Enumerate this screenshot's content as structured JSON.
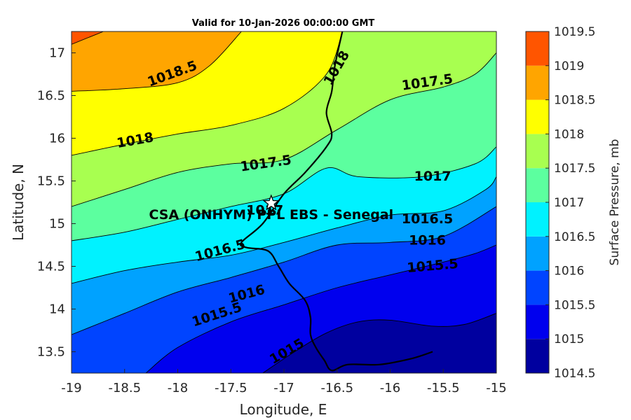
{
  "chart_data": {
    "type": "contour",
    "title": "Valid for 10-Jan-2026 00:00:00 GMT",
    "xlabel": "Longitude, E",
    "ylabel": "Latitude, N",
    "xlim": [
      -19,
      -15
    ],
    "ylim": [
      13.25,
      17.25
    ],
    "x_ticks": [
      -19,
      -18.5,
      -18,
      -17.5,
      -17,
      -16.5,
      -16,
      -15.5,
      -15
    ],
    "x_tick_labels": [
      "-19",
      "-18.5",
      "-18",
      "-17.5",
      "-17",
      "-16.5",
      "-16",
      "-15.5",
      "-15"
    ],
    "y_ticks": [
      13.5,
      14,
      14.5,
      15,
      15.5,
      16,
      16.5,
      17
    ],
    "y_tick_labels": [
      "13.5",
      "14",
      "14.5",
      "15",
      "15.5",
      "16",
      "16.5",
      "17"
    ],
    "colorbar": {
      "label": "Surface Pressure, mb",
      "levels": [
        14.5,
        15,
        15.5,
        16,
        16.5,
        17,
        17.5,
        18,
        18.5,
        19,
        19.5
      ],
      "level_labels": [
        "1014.5",
        "1015",
        "1015.5",
        "1016",
        "1016.5",
        "1017",
        "1017.5",
        "1018",
        "1018.5",
        "1019",
        "1019.5"
      ],
      "colors": [
        "#00009f",
        "#0000ee",
        "#0044ff",
        "#00a2ff",
        "#00f2ff",
        "#5cff9f",
        "#a8ff50",
        "#ffff00",
        "#ffa500",
        "#ff5500",
        "#ff0000"
      ]
    },
    "contours": [
      {
        "level": "1015",
        "points": [
          [
            -17.2,
            13.25
          ],
          [
            -16.9,
            13.5
          ],
          [
            -16.6,
            13.72
          ],
          [
            -16.3,
            13.85
          ],
          [
            -16.0,
            13.87
          ],
          [
            -15.6,
            13.8
          ],
          [
            -15.3,
            13.82
          ],
          [
            -15,
            13.95
          ]
        ]
      },
      {
        "level": "1015.5",
        "points": [
          [
            -18.3,
            13.25
          ],
          [
            -18.0,
            13.55
          ],
          [
            -17.5,
            13.85
          ],
          [
            -17.0,
            14.05
          ],
          [
            -16.5,
            14.25
          ],
          [
            -16.0,
            14.4
          ],
          [
            -15.5,
            14.55
          ],
          [
            -15.2,
            14.65
          ],
          [
            -15,
            14.75
          ]
        ]
      },
      {
        "level": "1016",
        "points": [
          [
            -19,
            13.7
          ],
          [
            -18.5,
            13.95
          ],
          [
            -18.0,
            14.2
          ],
          [
            -17.5,
            14.37
          ],
          [
            -17.0,
            14.55
          ],
          [
            -16.5,
            14.75
          ],
          [
            -16.0,
            14.78
          ],
          [
            -15.5,
            14.85
          ],
          [
            -15,
            15.2
          ]
        ]
      },
      {
        "level": "1016.5",
        "points": [
          [
            -19,
            14.3
          ],
          [
            -18.5,
            14.45
          ],
          [
            -18.0,
            14.55
          ],
          [
            -17.5,
            14.63
          ],
          [
            -17.0,
            14.78
          ],
          [
            -16.5,
            14.95
          ],
          [
            -16.0,
            15.1
          ],
          [
            -15.5,
            15.15
          ],
          [
            -15.1,
            15.4
          ],
          [
            -15,
            15.55
          ]
        ]
      },
      {
        "level": "1017",
        "points": [
          [
            -19,
            14.8
          ],
          [
            -18.5,
            14.9
          ],
          [
            -18.0,
            15.05
          ],
          [
            -17.5,
            15.2
          ],
          [
            -17.0,
            15.35
          ],
          [
            -16.6,
            15.65
          ],
          [
            -16.3,
            15.55
          ],
          [
            -15.7,
            15.55
          ],
          [
            -15.2,
            15.7
          ],
          [
            -15,
            15.9
          ]
        ]
      },
      {
        "level": "1017.5",
        "points": [
          [
            -19,
            15.2
          ],
          [
            -18.5,
            15.4
          ],
          [
            -18.0,
            15.6
          ],
          [
            -17.5,
            15.7
          ],
          [
            -17.0,
            15.75
          ],
          [
            -16.5,
            16.1
          ],
          [
            -16.0,
            16.45
          ],
          [
            -15.5,
            16.6
          ],
          [
            -15.2,
            16.75
          ],
          [
            -15,
            17.0
          ]
        ]
      },
      {
        "level": "1018",
        "points": [
          [
            -19,
            15.8
          ],
          [
            -18.5,
            15.93
          ],
          [
            -18.0,
            16.05
          ],
          [
            -17.5,
            16.15
          ],
          [
            -17.0,
            16.35
          ],
          [
            -16.6,
            16.75
          ],
          [
            -16.45,
            17.25
          ]
        ]
      },
      {
        "level": "1018.5",
        "points": [
          [
            -19,
            16.55
          ],
          [
            -18.5,
            16.58
          ],
          [
            -18.0,
            16.65
          ],
          [
            -17.7,
            16.85
          ],
          [
            -17.4,
            17.25
          ]
        ]
      },
      {
        "level": "1019",
        "points": [
          [
            -19,
            17.1
          ],
          [
            -18.7,
            17.25
          ]
        ]
      }
    ],
    "contour_labels": [
      {
        "text": "1018.5",
        "x": -18.05,
        "y": 16.75,
        "angle": -20
      },
      {
        "text": "1018",
        "x": -16.5,
        "y": 16.82,
        "angle": -60
      },
      {
        "text": "1017.5",
        "x": -15.65,
        "y": 16.65,
        "angle": -8
      },
      {
        "text": "1018",
        "x": -18.4,
        "y": 15.97,
        "angle": -10
      },
      {
        "text": "1017.5",
        "x": -17.17,
        "y": 15.7,
        "angle": -8
      },
      {
        "text": "1017",
        "x": -15.6,
        "y": 15.55,
        "angle": 0
      },
      {
        "text": "1017",
        "x": -17.18,
        "y": 15.15,
        "angle": 0
      },
      {
        "text": "1016.5",
        "x": -15.65,
        "y": 15.05,
        "angle": 0
      },
      {
        "text": "1016.5",
        "x": -17.6,
        "y": 14.68,
        "angle": -15
      },
      {
        "text": "1016",
        "x": -15.65,
        "y": 14.8,
        "angle": 0
      },
      {
        "text": "1015.5",
        "x": -15.6,
        "y": 14.5,
        "angle": -5
      },
      {
        "text": "1016",
        "x": -17.35,
        "y": 14.17,
        "angle": -15
      },
      {
        "text": "1015.5",
        "x": -17.63,
        "y": 13.93,
        "angle": -18
      },
      {
        "text": "1015",
        "x": -16.97,
        "y": 13.5,
        "angle": -30
      }
    ],
    "annotations": [
      {
        "text": "CSA (ONHYM) PPL EBS  - Senegal",
        "x": -17.12,
        "y": 15.1
      },
      {
        "marker": "star",
        "x": -17.12,
        "y": 15.24
      }
    ],
    "coastline": [
      [
        -16.45,
        17.25
      ],
      [
        -16.52,
        16.85
      ],
      [
        -16.55,
        16.55
      ],
      [
        -16.6,
        16.3
      ],
      [
        -16.55,
        16.05
      ],
      [
        -16.6,
        15.9
      ],
      [
        -16.8,
        15.6
      ],
      [
        -17.0,
        15.35
      ],
      [
        -17.2,
        15.0
      ],
      [
        -17.4,
        14.78
      ],
      [
        -17.35,
        14.72
      ],
      [
        -17.15,
        14.68
      ],
      [
        -17.05,
        14.5
      ],
      [
        -16.95,
        14.3
      ],
      [
        -16.8,
        14.1
      ],
      [
        -16.75,
        13.9
      ],
      [
        -16.75,
        13.7
      ],
      [
        -16.7,
        13.55
      ],
      [
        -16.62,
        13.4
      ],
      [
        -16.55,
        13.28
      ],
      [
        -16.4,
        13.35
      ],
      [
        -16.1,
        13.35
      ],
      [
        -15.8,
        13.42
      ],
      [
        -15.6,
        13.5
      ]
    ]
  }
}
